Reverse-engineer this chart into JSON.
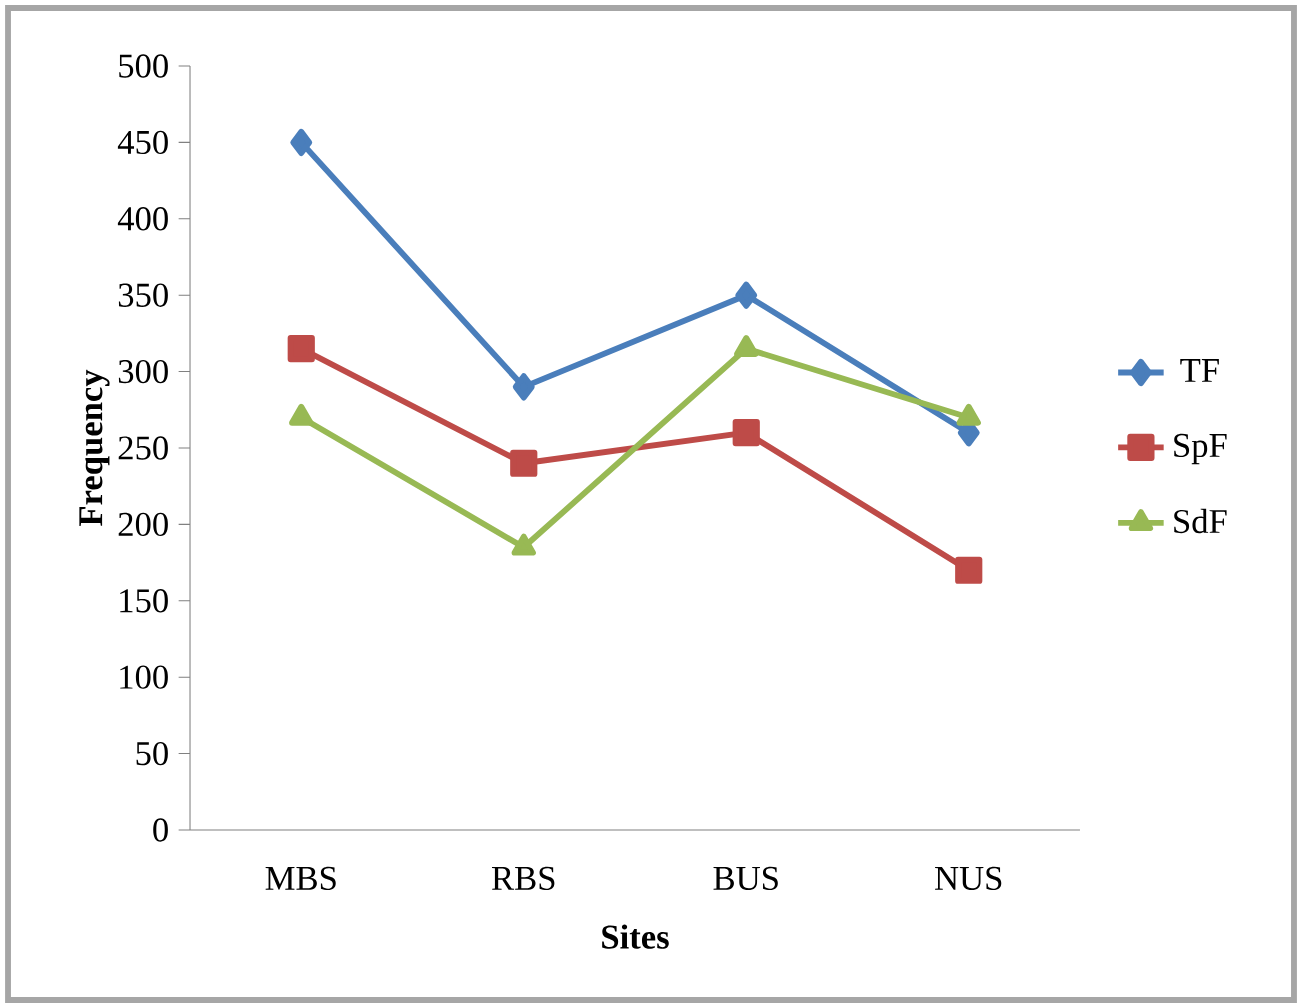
{
  "chart_data": {
    "type": "line",
    "xlabel": "Sites",
    "ylabel": "Frequency",
    "categories": [
      "MBS",
      "RBS",
      "BUS",
      "NUS"
    ],
    "series": [
      {
        "name": "TF",
        "color": "#4a7ebb",
        "marker": "diamond",
        "values": [
          450,
          290,
          350,
          260
        ]
      },
      {
        "name": "SpF",
        "color": "#be4b48",
        "marker": "square",
        "values": [
          315,
          240,
          260,
          170
        ]
      },
      {
        "name": "SdF",
        "color": "#98b954",
        "marker": "triangle",
        "values": [
          270,
          185,
          315,
          270
        ]
      }
    ],
    "ylim": [
      0,
      500
    ],
    "yticks": [
      0,
      50,
      100,
      150,
      200,
      250,
      300,
      350,
      400,
      450,
      500
    ],
    "grid": false,
    "legend": "right",
    "line_style": "solid"
  }
}
